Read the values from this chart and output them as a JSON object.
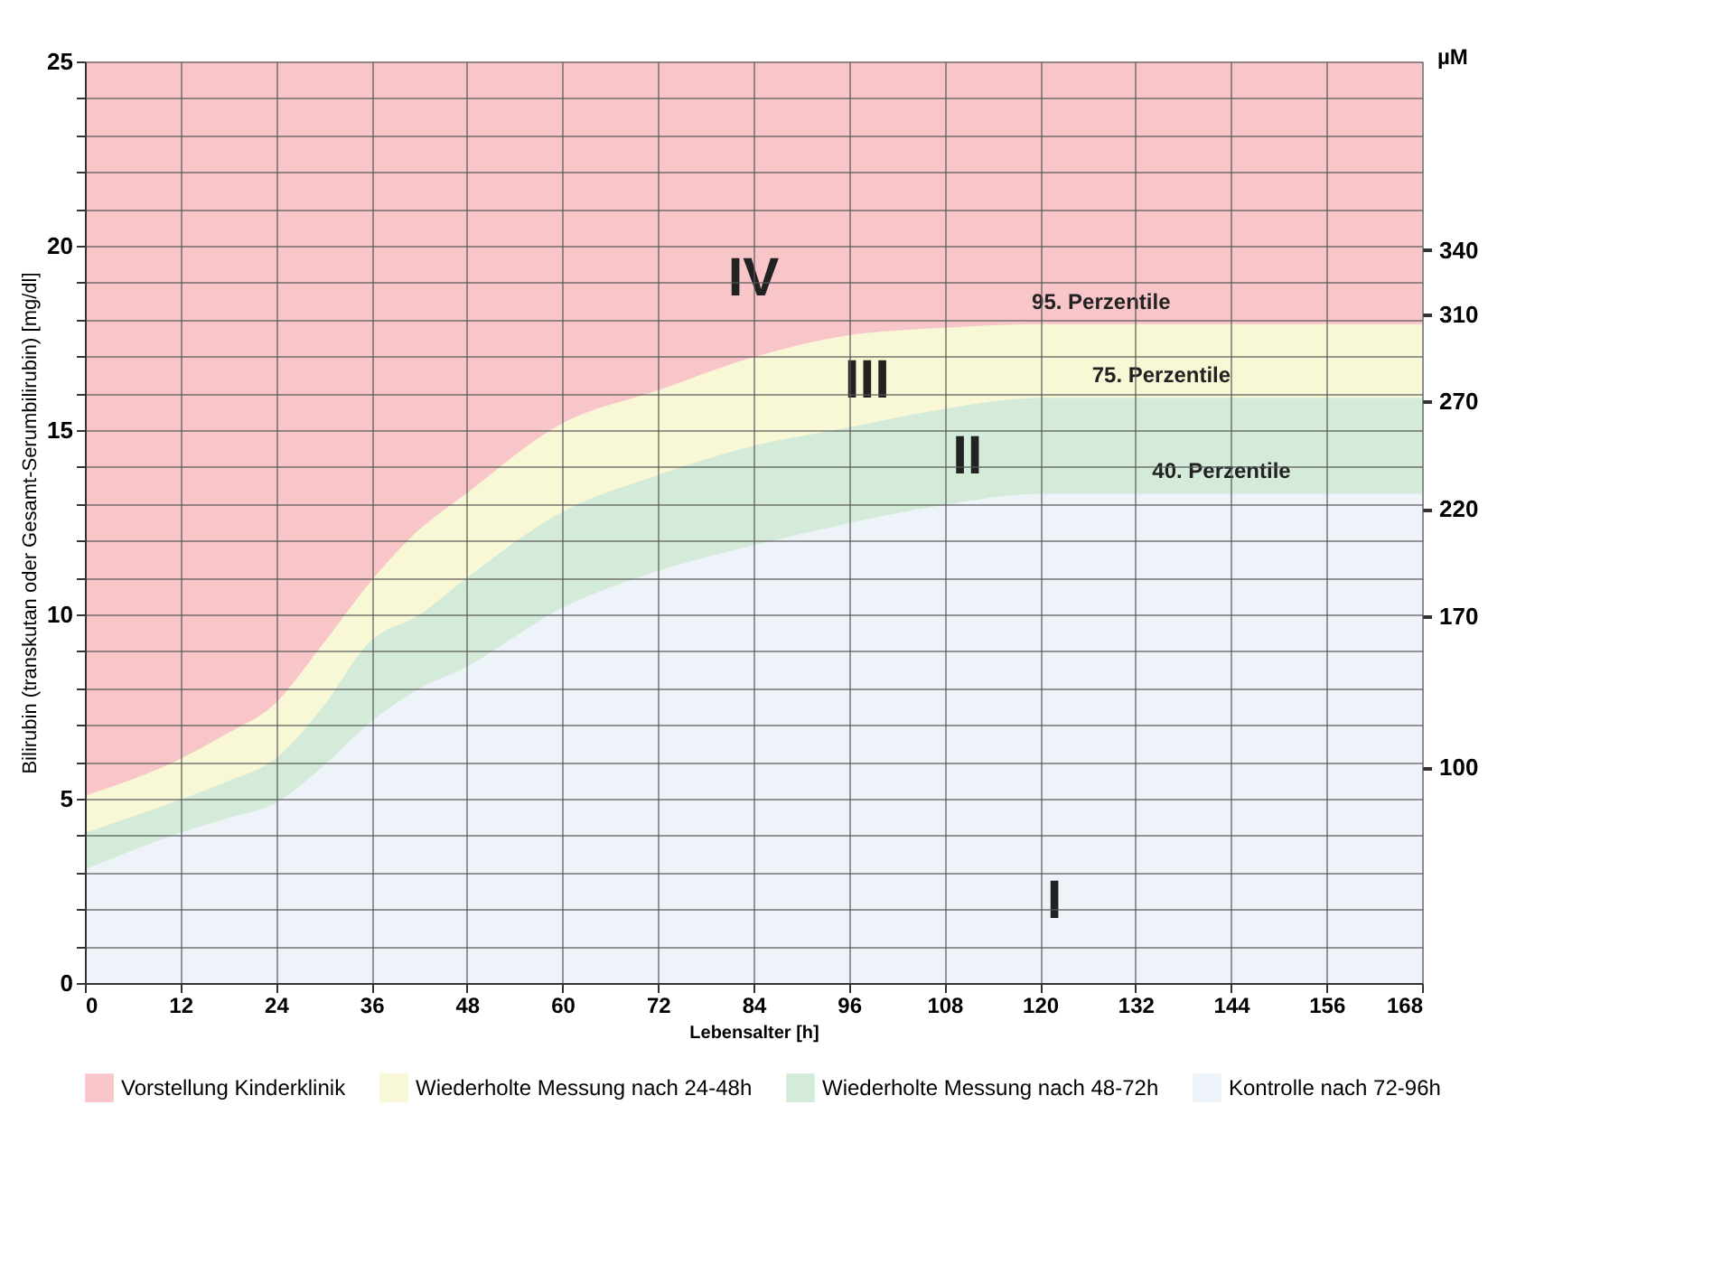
{
  "chart_data": {
    "type": "area",
    "x": [
      0,
      12,
      18,
      24,
      30,
      36,
      42,
      48,
      60,
      72,
      84,
      96,
      108,
      120,
      132,
      144,
      156,
      168
    ],
    "series": [
      {
        "name": "Vorstellung Kinderklinik",
        "color": "#f8c5c8",
        "values": [
          25,
          25,
          25,
          25,
          25,
          25,
          25,
          25,
          25,
          25,
          25,
          25,
          25,
          25,
          25,
          25,
          25,
          25
        ]
      },
      {
        "name": "Wiederholte Messung nach 24-48h",
        "color": "#f9f8d6",
        "values": [
          5.0,
          6.0,
          6.7,
          7.5,
          9.1,
          10.8,
          12.2,
          13.2,
          15.1,
          16.0,
          16.9,
          17.5,
          17.7,
          17.8,
          17.8,
          17.8,
          17.8,
          17.8
        ]
      },
      {
        "name": "Wiederholte Messung nach 48-72h",
        "color": "#d3ebd8",
        "values": [
          4.0,
          4.9,
          5.4,
          6.0,
          7.4,
          9.2,
          9.9,
          10.9,
          12.7,
          13.7,
          14.5,
          15.0,
          15.5,
          15.8,
          15.8,
          15.8,
          15.8,
          15.8
        ]
      },
      {
        "name": "Kontrolle nach 72-96h",
        "color": "#eef3fa",
        "values": [
          3.0,
          4.0,
          4.4,
          4.8,
          5.8,
          7.0,
          7.9,
          8.5,
          10.1,
          11.1,
          11.8,
          12.4,
          12.9,
          13.2,
          13.2,
          13.2,
          13.2,
          13.2
        ]
      }
    ],
    "xlabel": "Lebensalter [h]",
    "ylabel": "Bilirubin (transkutan oder Gesamt-Serumbilirubin) [mg/dl]",
    "y2label": "µM",
    "xlim": [
      0,
      168
    ],
    "xticks": [
      0,
      12,
      24,
      36,
      48,
      60,
      72,
      84,
      96,
      108,
      120,
      132,
      144,
      156,
      168
    ],
    "ylim": [
      0,
      25
    ],
    "yticks": [
      0,
      {
        "value": 1,
        "label": null
      },
      {
        "value": 2,
        "label": null
      },
      {
        "value": 3,
        "label": null
      },
      {
        "value": 4,
        "label": null
      },
      5,
      {
        "value": 6,
        "label": null
      },
      {
        "value": 7,
        "label": null
      },
      {
        "value": 8,
        "label": null
      },
      {
        "value": 9,
        "label": null
      },
      10,
      {
        "value": 11,
        "label": null
      },
      {
        "value": 12,
        "label": null
      },
      {
        "value": 13,
        "label": null
      },
      {
        "value": 14,
        "label": null
      },
      15,
      {
        "value": 16,
        "label": null
      },
      {
        "value": 17,
        "label": null
      },
      {
        "value": 18,
        "label": null
      },
      {
        "value": 19,
        "label": null
      },
      20,
      {
        "value": 21,
        "label": null
      },
      {
        "value": 22,
        "label": null
      },
      {
        "value": 23,
        "label": null
      },
      {
        "value": 24,
        "label": null
      },
      25
    ],
    "y2lim": [
      0,
      427.5
    ],
    "y2ticks": [
      100,
      170,
      220,
      270,
      310,
      340
    ],
    "annotations": [
      "IV",
      "III",
      "II",
      "I",
      "95. Perzentile",
      "75. Perzentile",
      "40. Perzentile"
    ],
    "grid": true,
    "legend": "bottom",
    "line_style": "solid"
  }
}
